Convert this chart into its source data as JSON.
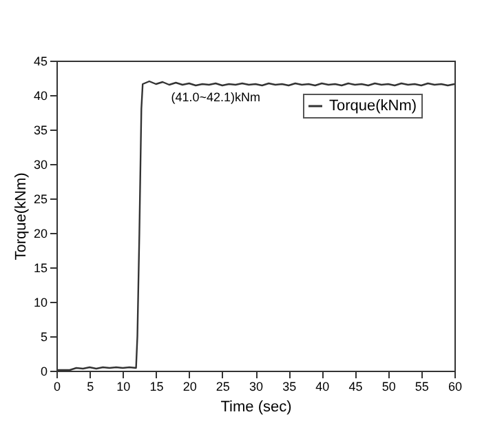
{
  "chart_data": {
    "type": "line",
    "xlabel": "Time (sec)",
    "ylabel": "Torque(kNm)",
    "annotations": [
      "(41.0~42.1)kNm"
    ],
    "x": [
      0,
      1,
      2,
      3,
      4,
      5,
      6,
      7,
      8,
      9,
      10,
      11,
      12,
      12.2,
      12.5,
      12.8,
      13,
      14,
      15,
      16,
      17,
      18,
      19,
      20,
      21,
      22,
      23,
      24,
      25,
      26,
      27,
      28,
      29,
      30,
      31,
      32,
      33,
      34,
      35,
      36,
      37,
      38,
      39,
      40,
      41,
      42,
      43,
      44,
      45,
      46,
      47,
      48,
      49,
      50,
      51,
      52,
      53,
      54,
      55,
      56,
      57,
      58,
      59,
      60
    ],
    "series": [
      {
        "name": "Torque(kNm)",
        "color": "#333333",
        "values": [
          0.1,
          0.1,
          0.1,
          0.4,
          0.3,
          0.5,
          0.3,
          0.5,
          0.4,
          0.5,
          0.4,
          0.5,
          0.4,
          5,
          20,
          38,
          41.6,
          42,
          41.6,
          41.9,
          41.5,
          41.8,
          41.5,
          41.7,
          41.4,
          41.6,
          41.5,
          41.7,
          41.4,
          41.6,
          41.5,
          41.7,
          41.5,
          41.6,
          41.4,
          41.7,
          41.5,
          41.6,
          41.4,
          41.7,
          41.5,
          41.6,
          41.4,
          41.7,
          41.5,
          41.6,
          41.4,
          41.7,
          41.5,
          41.6,
          41.4,
          41.7,
          41.5,
          41.6,
          41.4,
          41.7,
          41.5,
          41.6,
          41.4,
          41.7,
          41.5,
          41.6,
          41.4,
          41.6
        ]
      }
    ],
    "xlim": [
      0,
      60
    ],
    "xticks": [
      0,
      5,
      10,
      15,
      20,
      25,
      30,
      35,
      40,
      45,
      50,
      55,
      60
    ],
    "ylim": [
      0,
      45
    ],
    "yticks": [
      0,
      5,
      10,
      15,
      20,
      25,
      30,
      35,
      40,
      45
    ],
    "grid": false,
    "legend": "top right",
    "marker": "none",
    "line_style": "solid"
  }
}
